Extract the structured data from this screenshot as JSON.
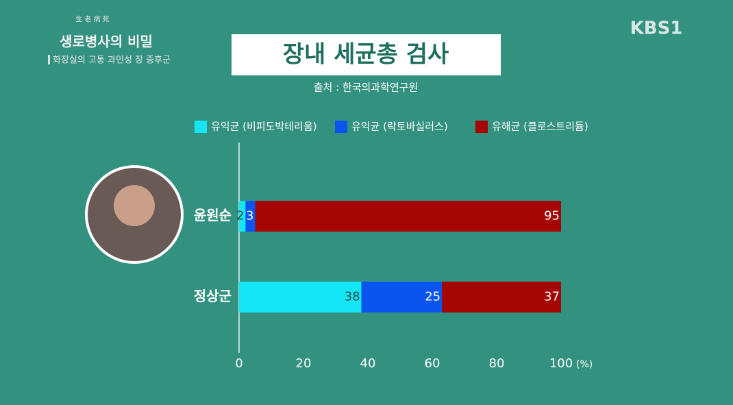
{
  "chart_data": {
    "type": "stacked-bar-horizontal",
    "title": "장내 세균총 검사",
    "subtitle": "출처 : 한국의과학연구원",
    "categories": [
      "윤원순",
      "정상군"
    ],
    "series": [
      {
        "name": "유익균 (비피도박테리움)",
        "color": "#14e6f5",
        "values": [
          2,
          38
        ]
      },
      {
        "name": "유익균 (락토바실러스)",
        "color": "#0a55f0",
        "values": [
          3,
          25
        ]
      },
      {
        "name": "유해균 (클로스트리듐)",
        "color": "#a50505",
        "values": [
          95,
          37
        ]
      }
    ],
    "xlim": [
      0,
      100
    ],
    "xticks": [
      0,
      20,
      40,
      60,
      80,
      100
    ],
    "x_unit": "(%)",
    "legend": "top"
  },
  "overlay": {
    "channel": "KBS1",
    "program_hanja": "生 老 病 死",
    "program": "생로병사의 비밀",
    "episode": "화장실의 고통 과민성 장 증후군"
  }
}
